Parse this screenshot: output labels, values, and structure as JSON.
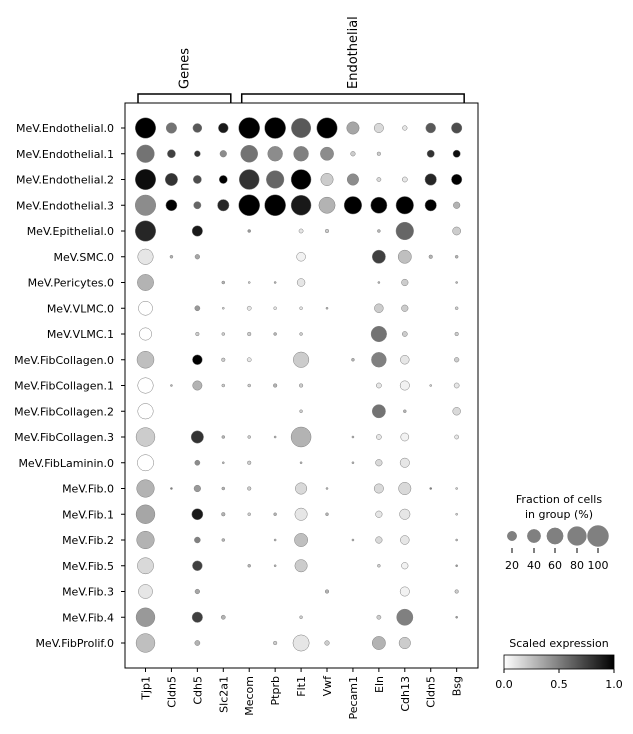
{
  "chart_data": {
    "type": "dotplot",
    "groups": [
      {
        "label": "Genes",
        "start": 0,
        "end": 3
      },
      {
        "label": "Endothelial",
        "start": 4,
        "end": 12
      }
    ],
    "genes": [
      "Tjp1",
      "Cldn5",
      "Cdh5",
      "Slc2a1",
      "Mecom",
      "Ptprb",
      "Flt1",
      "Vwf",
      "Pecam1",
      "Eln",
      "Cdh13",
      "Cldn5",
      "Bsg"
    ],
    "cell_types": [
      "MeV.Endothelial.0",
      "MeV.Endothelial.1",
      "MeV.Endothelial.2",
      "MeV.Endothelial.3",
      "MeV.Epithelial.0",
      "MeV.SMC.0",
      "MeV.Pericytes.0",
      "MeV.VLMC.0",
      "MeV.VLMC.1",
      "MeV.FibCollagen.0",
      "MeV.FibCollagen.1",
      "MeV.FibCollagen.2",
      "MeV.FibCollagen.3",
      "MeV.FibLaminin.0",
      "MeV.Fib.0",
      "MeV.Fib.1",
      "MeV.Fib.2",
      "MeV.Fib.5",
      "MeV.Fib.3",
      "MeV.Fib.4",
      "MeV.FibProlif.0"
    ],
    "fraction": [
      [
        95,
        25,
        18,
        22,
        100,
        100,
        85,
        95,
        35,
        20,
        5,
        22,
        25
      ],
      [
        70,
        15,
        8,
        10,
        65,
        50,
        50,
        40,
        5,
        3,
        0,
        12,
        12
      ],
      [
        95,
        35,
        15,
        15,
        90,
        70,
        90,
        35,
        30,
        4,
        6,
        30,
        25
      ],
      [
        95,
        28,
        12,
        30,
        100,
        100,
        90,
        60,
        70,
        60,
        70,
        30,
        10
      ],
      [
        95,
        0,
        25,
        0,
        2,
        0,
        4,
        3,
        0,
        2,
        70,
        0,
        15
      ],
      [
        55,
        2,
        5,
        0,
        0,
        0,
        18,
        0,
        0,
        40,
        40,
        3,
        2
      ],
      [
        60,
        0,
        0,
        2,
        1,
        1,
        14,
        0,
        0,
        1,
        10,
        0,
        1
      ],
      [
        45,
        0,
        6,
        1,
        4,
        2,
        2,
        1,
        0,
        18,
        10,
        0,
        2
      ],
      [
        35,
        0,
        3,
        2,
        3,
        2,
        2,
        0,
        0,
        55,
        6,
        0,
        3
      ],
      [
        65,
        0,
        22,
        3,
        4,
        0,
        55,
        0,
        2,
        50,
        18,
        0,
        5
      ],
      [
        55,
        1,
        20,
        2,
        2,
        3,
        3,
        0,
        0,
        6,
        20,
        1,
        6
      ],
      [
        55,
        0,
        0,
        0,
        0,
        0,
        2,
        0,
        0,
        40,
        2,
        0,
        14
      ],
      [
        80,
        0,
        35,
        2,
        2,
        1,
        90,
        0,
        1,
        6,
        15,
        0,
        4
      ],
      [
        60,
        0,
        6,
        1,
        3,
        0,
        1,
        0,
        1,
        10,
        20,
        0,
        0
      ],
      [
        70,
        1,
        10,
        2,
        3,
        0,
        30,
        1,
        0,
        20,
        35,
        1,
        1
      ],
      [
        80,
        0,
        28,
        3,
        2,
        2,
        35,
        2,
        0,
        10,
        25,
        0,
        1
      ],
      [
        70,
        0,
        8,
        2,
        0,
        1,
        40,
        0,
        1,
        10,
        18,
        0,
        1
      ],
      [
        60,
        0,
        22,
        0,
        2,
        1,
        35,
        0,
        0,
        2,
        10,
        0,
        1
      ],
      [
        45,
        0,
        5,
        0,
        0,
        0,
        0,
        3,
        0,
        0,
        20,
        0,
        3
      ],
      [
        80,
        0,
        25,
        4,
        0,
        0,
        2,
        0,
        0,
        4,
        60,
        0,
        1
      ],
      [
        80,
        0,
        6,
        0,
        0,
        3,
        60,
        5,
        0,
        40,
        30,
        0,
        0
      ]
    ],
    "expression": [
      [
        1.0,
        0.55,
        0.65,
        0.9,
        1.0,
        1.0,
        0.65,
        1.0,
        0.35,
        0.15,
        0.1,
        0.65,
        0.7
      ],
      [
        0.55,
        0.75,
        0.8,
        0.45,
        0.55,
        0.45,
        0.5,
        0.45,
        0.2,
        0.2,
        0,
        0.8,
        0.95
      ],
      [
        0.95,
        0.8,
        0.7,
        1.0,
        0.8,
        0.6,
        1.0,
        0.2,
        0.45,
        0.15,
        0.1,
        0.85,
        1.0
      ],
      [
        0.45,
        1.0,
        0.6,
        0.85,
        1.0,
        1.0,
        0.9,
        0.3,
        1.0,
        1.0,
        1.0,
        1.0,
        0.3
      ],
      [
        0.85,
        0,
        0.9,
        0,
        0.4,
        0,
        0.1,
        0.2,
        0,
        0.3,
        0.6,
        0,
        0.2
      ],
      [
        0.1,
        0.3,
        0.35,
        0,
        0,
        0,
        0.05,
        0,
        0,
        0.75,
        0.25,
        0.3,
        0.3
      ],
      [
        0.3,
        0,
        0,
        0.3,
        0.2,
        0.3,
        0.1,
        0,
        0,
        0.3,
        0.2,
        0,
        0.3
      ],
      [
        0.0,
        0,
        0.4,
        0.2,
        0.1,
        0.1,
        0.1,
        0.3,
        0,
        0.2,
        0.2,
        0,
        0.2
      ],
      [
        0.0,
        0,
        0.2,
        0.2,
        0.2,
        0.3,
        0.2,
        0,
        0,
        0.55,
        0.2,
        0,
        0.2
      ],
      [
        0.25,
        0,
        1.0,
        0.2,
        0.1,
        0,
        0.2,
        0,
        0.3,
        0.5,
        0.1,
        0,
        0.2
      ],
      [
        0.0,
        0.3,
        0.3,
        0.2,
        0.2,
        0.3,
        0.2,
        0,
        0,
        0.1,
        0.05,
        0.2,
        0.1
      ],
      [
        0.0,
        0,
        0,
        0,
        0,
        0,
        0.2,
        0,
        0,
        0.55,
        0.3,
        0,
        0.15
      ],
      [
        0.2,
        0,
        0.8,
        0.3,
        0.2,
        0.3,
        0.3,
        0,
        0.3,
        0.1,
        0.05,
        0,
        0.1
      ],
      [
        0.0,
        0,
        0.45,
        0.3,
        0.2,
        0,
        0.3,
        0,
        0.3,
        0.15,
        0.1,
        0,
        0
      ],
      [
        0.3,
        0.5,
        0.4,
        0.3,
        0.2,
        0,
        0.15,
        0.3,
        0,
        0.15,
        0.15,
        0.5,
        0.2
      ],
      [
        0.35,
        0,
        0.9,
        0.3,
        0.2,
        0.3,
        0.1,
        0.3,
        0,
        0.1,
        0.1,
        0,
        0.2
      ],
      [
        0.3,
        0,
        0.5,
        0.3,
        0,
        0.3,
        0.25,
        0,
        0.3,
        0.15,
        0.1,
        0,
        0.3
      ],
      [
        0.15,
        0,
        0.75,
        0,
        0.3,
        0.3,
        0.2,
        0,
        0,
        0.2,
        0.05,
        0,
        0.4
      ],
      [
        0.1,
        0,
        0.35,
        0,
        0,
        0,
        0,
        0.3,
        0,
        0,
        0.05,
        0,
        0.2
      ],
      [
        0.4,
        0,
        0.75,
        0.3,
        0,
        0,
        0.2,
        0,
        0,
        0.2,
        0.5,
        0,
        0.4
      ],
      [
        0.25,
        0,
        0.3,
        0,
        0,
        0.2,
        0.1,
        0.2,
        0,
        0.3,
        0.2,
        0,
        0
      ]
    ],
    "size_legend": {
      "title_line1": "Fraction of cells",
      "title_line2": "in group (%)",
      "values": [
        20,
        40,
        60,
        80,
        100
      ],
      "tick_labels": [
        "20",
        "40",
        "60",
        "80",
        "100"
      ]
    },
    "color_legend": {
      "title": "Scaled expression",
      "range": [
        0,
        1
      ],
      "tick_labels": [
        "0.0",
        "0.5",
        "1.0"
      ],
      "colormap": "Greys"
    },
    "legend_dot_color": "#808080"
  }
}
